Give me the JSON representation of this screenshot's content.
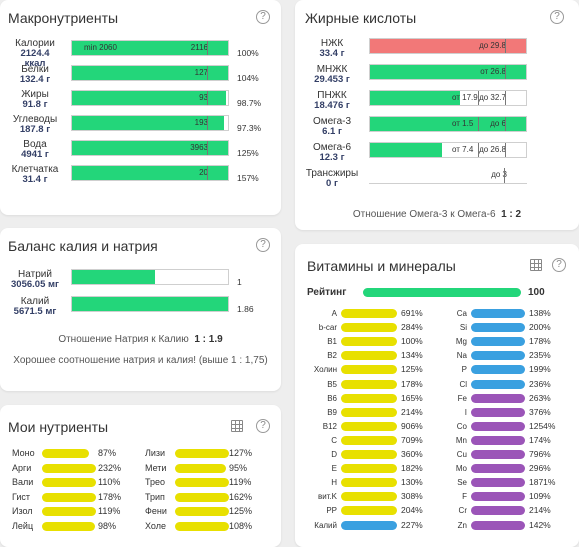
{
  "macro": {
    "title": "Макронутриенты",
    "help": "?",
    "rows": [
      {
        "name": "Калории",
        "amount": "2124.4",
        "unit": "ккал",
        "inbar": "2116",
        "min_label": "min 2060",
        "percent": "100%",
        "fill": 1.0
      },
      {
        "name": "Белки",
        "amount": "132.4 г",
        "inbar": "127",
        "percent": "104%",
        "fill": 1.0
      },
      {
        "name": "Жиры",
        "amount": "91.8 г",
        "inbar": "93",
        "percent": "98.7%",
        "fill": 0.987
      },
      {
        "name": "Углеводы",
        "amount": "187.8 г",
        "inbar": "193",
        "percent": "97.3%",
        "fill": 0.973
      },
      {
        "name": "Вода",
        "amount": "4941 г",
        "inbar": "3963",
        "percent": "125%",
        "fill": 1.0
      },
      {
        "name": "Клетчатка",
        "amount": "31.4 г",
        "inbar": "20",
        "percent": "157%",
        "fill": 1.0
      }
    ]
  },
  "fatty": {
    "title": "Жирные кислоты",
    "help": "?",
    "rows": [
      {
        "name": "НЖК",
        "amount": "33.4 г",
        "limit": "до 29.8",
        "fill": 1.0,
        "color": "#f27878"
      },
      {
        "name": "МНЖК",
        "amount": "29.453 г",
        "limit": "от 26.8",
        "fill": 1.0,
        "color": "#23d67a"
      },
      {
        "name": "ПНЖК",
        "amount": "18.476 г",
        "from": "от 17.9",
        "limit": "до 32.7",
        "fill": 0.58,
        "color": "#23d67a"
      },
      {
        "name": "Омега-3",
        "amount": "6.1 г",
        "from": "от 1.5",
        "limit": "до 6",
        "fill": 1.0,
        "color": "#23d67a"
      },
      {
        "name": "Омега-6",
        "amount": "12.3 г",
        "from": "от 7.4",
        "limit": "до 26.8",
        "fill": 0.46,
        "color": "#23d67a"
      },
      {
        "name": "Трансжиры",
        "amount": "0 г",
        "limit": "до 3",
        "fill": 0.0,
        "color": "#23d67a"
      }
    ],
    "ratio_label": "Отношение Омега-3 к Омега-6",
    "ratio_value": "1 : 2"
  },
  "kna": {
    "title": "Баланс калия и натрия",
    "help": "?",
    "rows": [
      {
        "name": "Натрий",
        "amount": "3056.05 мг",
        "value": "1",
        "fill": 0.53
      },
      {
        "name": "Калий",
        "amount": "5671.5 мг",
        "value": "1.86",
        "fill": 1.0
      }
    ],
    "ratio_label": "Отношение Натрия к Калию",
    "ratio_value": "1 : 1.9",
    "note": "Хорошее соотношение натрия и калия! (выше 1 : 1,75)"
  },
  "vitamins": {
    "title": "Витамины и минералы",
    "help": "?",
    "rating_label": "Рейтинг",
    "rating_value": "100",
    "rating_fill": 1.0,
    "left": [
      {
        "name": "A",
        "value": "691%",
        "color": "#e8e000"
      },
      {
        "name": "b-car",
        "value": "284%",
        "color": "#e8e000"
      },
      {
        "name": "B1",
        "value": "100%",
        "color": "#e8e000"
      },
      {
        "name": "B2",
        "value": "134%",
        "color": "#e8e000"
      },
      {
        "name": "Холин",
        "value": "125%",
        "color": "#e8e000"
      },
      {
        "name": "B5",
        "value": "178%",
        "color": "#e8e000"
      },
      {
        "name": "B6",
        "value": "165%",
        "color": "#e8e000"
      },
      {
        "name": "B9",
        "value": "214%",
        "color": "#e8e000"
      },
      {
        "name": "B12",
        "value": "906%",
        "color": "#e8e000"
      },
      {
        "name": "C",
        "value": "709%",
        "color": "#e8e000"
      },
      {
        "name": "D",
        "value": "360%",
        "color": "#e8e000"
      },
      {
        "name": "E",
        "value": "182%",
        "color": "#e8e000"
      },
      {
        "name": "H",
        "value": "130%",
        "color": "#e8e000"
      },
      {
        "name": "вит.K",
        "value": "308%",
        "color": "#e8e000"
      },
      {
        "name": "PP",
        "value": "204%",
        "color": "#e8e000"
      },
      {
        "name": "Калий",
        "value": "227%",
        "color": "#3aa0e0"
      }
    ],
    "right": [
      {
        "name": "Ca",
        "value": "138%",
        "color": "#3aa0e0"
      },
      {
        "name": "Si",
        "value": "200%",
        "color": "#3aa0e0"
      },
      {
        "name": "Mg",
        "value": "178%",
        "color": "#3aa0e0"
      },
      {
        "name": "Na",
        "value": "235%",
        "color": "#3aa0e0"
      },
      {
        "name": "P",
        "value": "199%",
        "color": "#3aa0e0"
      },
      {
        "name": "Cl",
        "value": "236%",
        "color": "#3aa0e0"
      },
      {
        "name": "Fe",
        "value": "263%",
        "color": "#9b55b8"
      },
      {
        "name": "I",
        "value": "376%",
        "color": "#9b55b8"
      },
      {
        "name": "Co",
        "value": "1254%",
        "color": "#9b55b8"
      },
      {
        "name": "Mn",
        "value": "174%",
        "color": "#9b55b8"
      },
      {
        "name": "Cu",
        "value": "796%",
        "color": "#9b55b8"
      },
      {
        "name": "Mo",
        "value": "296%",
        "color": "#9b55b8"
      },
      {
        "name": "Se",
        "value": "1871%",
        "color": "#9b55b8"
      },
      {
        "name": "F",
        "value": "109%",
        "color": "#9b55b8"
      },
      {
        "name": "Cr",
        "value": "214%",
        "color": "#9b55b8"
      },
      {
        "name": "Zn",
        "value": "142%",
        "color": "#9b55b8"
      }
    ]
  },
  "my": {
    "title": "Мои нутриенты",
    "help": "?",
    "left": [
      {
        "name": "Моно",
        "value": "87%",
        "fill": 0.87
      },
      {
        "name": "Арги",
        "value": "232%",
        "fill": 1.0
      },
      {
        "name": "Вали",
        "value": "110%",
        "fill": 1.0
      },
      {
        "name": "Гист",
        "value": "178%",
        "fill": 1.0
      },
      {
        "name": "Изол",
        "value": "119%",
        "fill": 1.0
      },
      {
        "name": "Лейц",
        "value": "98%",
        "fill": 0.98
      }
    ],
    "right": [
      {
        "name": "Лизи",
        "value": "127%",
        "fill": 1.0
      },
      {
        "name": "Мети",
        "value": "95%",
        "fill": 0.95
      },
      {
        "name": "Трео",
        "value": "119%",
        "fill": 1.0
      },
      {
        "name": "Трип",
        "value": "162%",
        "fill": 1.0
      },
      {
        "name": "Фени",
        "value": "125%",
        "fill": 1.0
      },
      {
        "name": "Холе",
        "value": "108%",
        "fill": 1.0
      }
    ]
  }
}
